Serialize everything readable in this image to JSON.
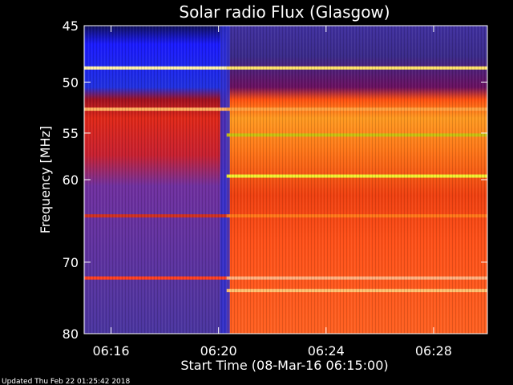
{
  "chart_data": {
    "type": "heatmap",
    "title": "Solar radio Flux (Glasgow)",
    "xlabel": "Start Time (08-Mar-16 06:15:00)",
    "ylabel": "Frequency [MHz]",
    "x_tick_labels": [
      "06:16",
      "06:20",
      "06:24",
      "06:28"
    ],
    "x_ticks_min": [
      16,
      20,
      24,
      28
    ],
    "xlim_min": [
      15,
      30
    ],
    "y_tick_labels": [
      "45",
      "50",
      "55",
      "60",
      "70",
      "80"
    ],
    "y_ticks_mhz": [
      45,
      50,
      55,
      60,
      70,
      80
    ],
    "ylim_mhz": [
      45,
      80
    ],
    "y_scale": "log",
    "onset_min": 20.3,
    "colors": {
      "quiet_low": "#1a1aff",
      "quiet": "#4a35a0",
      "active": "#e61e08",
      "bright": "#ff8a10",
      "hot": "#fff060",
      "dark_band": "#8a0010"
    },
    "bands": [
      {
        "f": 48.7,
        "pre": "#fff2a8",
        "post": "#ffe36a"
      },
      {
        "f": 52.6,
        "pre": "#ffb060",
        "post": "#ffa040"
      },
      {
        "f": 55.2,
        "post": "#c8c010"
      },
      {
        "f": 59.6,
        "post": "#f0f030"
      },
      {
        "f": 64.2,
        "pre": "#d03020",
        "post": "#ff7818"
      },
      {
        "f": 72.1,
        "pre": "#ff4020",
        "post": "#ffb080"
      },
      {
        "f": 73.8,
        "post": "#ffc070"
      }
    ]
  },
  "footer": {
    "updated": "Updated Thu Feb 22 01:25:42 2018"
  }
}
